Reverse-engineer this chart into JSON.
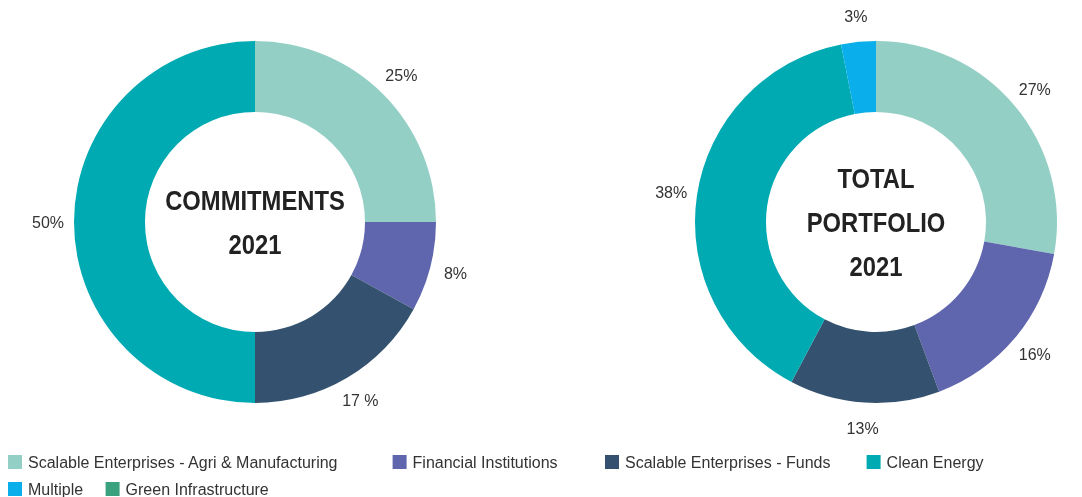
{
  "chart_data": [
    {
      "type": "donut",
      "title": "COMMITMENTS 2021",
      "categories": [
        null,
        null,
        null,
        null
      ],
      "values": [
        25,
        8,
        17,
        50
      ],
      "value_labels": [
        "25%",
        "8%",
        "17 %",
        "50%"
      ],
      "colors": [
        "#94cfc6",
        "#5f66ae",
        "#34526f",
        "#00aab3"
      ]
    },
    {
      "type": "donut",
      "title": "TOTAL PORTFOLIO 2021",
      "categories": [
        "Scalable Enterprises - Agri & Manufacturing",
        "Financial Institutions",
        "Scalable Enterprises - Funds",
        "Clean Energy",
        "Multiple",
        "Green Infrastructure"
      ],
      "values": [
        27,
        16,
        13,
        38,
        3,
        null
      ],
      "value_labels": [
        "27%",
        "16%",
        "13%",
        "38%",
        "3%",
        null
      ],
      "colors": [
        "#94cfc6",
        "#5f66ae",
        "#34526f",
        "#00aab3",
        "#09aeea",
        "#3aa17e"
      ],
      "legend": "bottom"
    }
  ]
}
